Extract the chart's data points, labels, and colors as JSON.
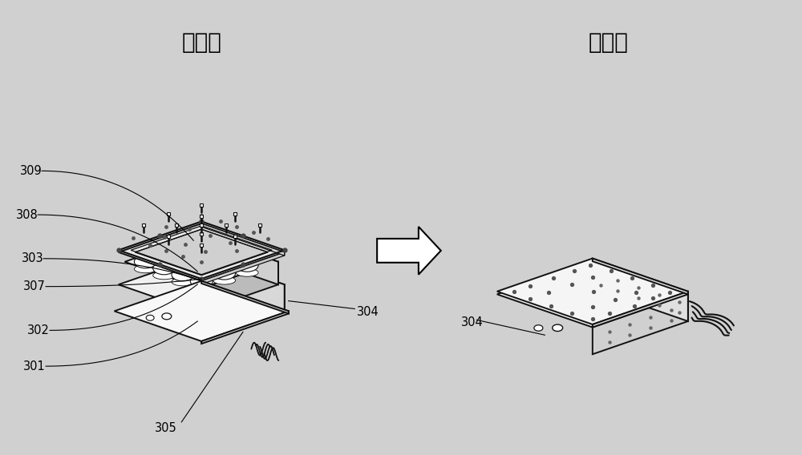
{
  "bg_color": "#d0d0d0",
  "title_left": "装配前",
  "title_right": "装配后",
  "title_fontsize": 20,
  "title_fontweight": "bold",
  "line_color": "#111111",
  "line_width": 1.4,
  "thin_line": 0.9,
  "label_fontsize": 10.5,
  "face_white": "#ffffff",
  "face_light": "#f0f0f0",
  "face_mid": "#e0e0e0",
  "face_dark": "#cccccc",
  "side_light": "#e8e8e8",
  "side_dark": "#c8c8c8"
}
